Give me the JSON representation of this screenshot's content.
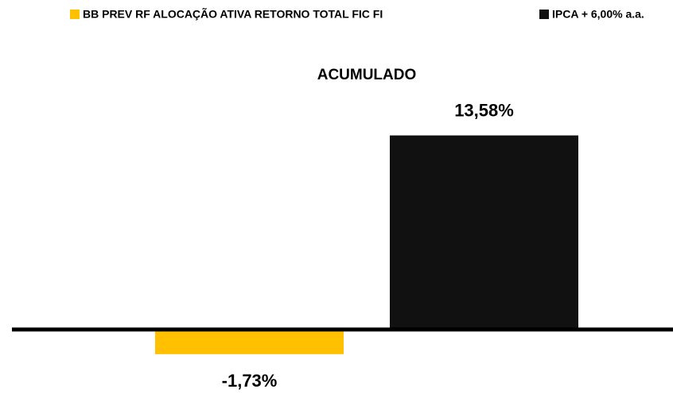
{
  "chart_data": {
    "type": "bar",
    "categories": [
      "ACUMULADO"
    ],
    "series": [
      {
        "name": "BB PREV RF ALOCAÇÃO ATIVA RETORNO TOTAL FIC FI",
        "color": "#ffc000",
        "values": [
          -1.73
        ],
        "value_labels": [
          "-1,73%"
        ]
      },
      {
        "name": "IPCA + 6,00% a.a.",
        "color": "#111111",
        "values": [
          13.58
        ],
        "value_labels": [
          "13,58%"
        ]
      }
    ],
    "ylim": [
      -4,
      16
    ]
  }
}
